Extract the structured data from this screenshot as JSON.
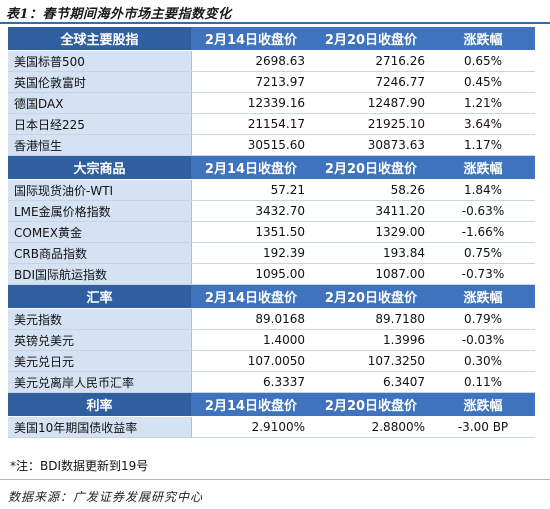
{
  "title": "表1：春节期间海外市场主要指数变化",
  "columns": [
    "2月14日收盘价",
    "2月20日收盘价",
    "涨跌幅"
  ],
  "sections": [
    {
      "name": "全球主要股指",
      "rows": [
        {
          "name": "美国标普500",
          "v1": "2698.63",
          "v2": "2716.26",
          "chg": "0.65%",
          "dir": "up"
        },
        {
          "name": "英国伦敦富时",
          "v1": "7213.97",
          "v2": "7246.77",
          "chg": "0.45%",
          "dir": "up"
        },
        {
          "name": "德国DAX",
          "v1": "12339.16",
          "v2": "12487.90",
          "chg": "1.21%",
          "dir": "up"
        },
        {
          "name": "日本日经225",
          "v1": "21154.17",
          "v2": "21925.10",
          "chg": "3.64%",
          "dir": "up"
        },
        {
          "name": "香港恒生",
          "v1": "30515.60",
          "v2": "30873.63",
          "chg": "1.17%",
          "dir": "up"
        }
      ]
    },
    {
      "name": "大宗商品",
      "rows": [
        {
          "name": "国际现货油价-WTI",
          "v1": "57.21",
          "v2": "58.26",
          "chg": "1.84%",
          "dir": "up"
        },
        {
          "name": "LME金属价格指数",
          "v1": "3432.70",
          "v2": "3411.20",
          "chg": "-0.63%",
          "dir": "down"
        },
        {
          "name": "COMEX黄金",
          "v1": "1351.50",
          "v2": "1329.00",
          "chg": "-1.66%",
          "dir": "down"
        },
        {
          "name": "CRB商品指数",
          "v1": "192.39",
          "v2": "193.84",
          "chg": "0.75%",
          "dir": "up"
        },
        {
          "name": "BDI国际航运指数",
          "v1": "1095.00",
          "v2": "1087.00",
          "chg": "-0.73%",
          "dir": "down"
        }
      ]
    },
    {
      "name": "汇率",
      "rows": [
        {
          "name": "美元指数",
          "v1": "89.0168",
          "v2": "89.7180",
          "chg": "0.79%",
          "dir": "up"
        },
        {
          "name": "英镑兑美元",
          "v1": "1.4000",
          "v2": "1.3996",
          "chg": "-0.03%",
          "dir": "down"
        },
        {
          "name": "美元兑日元",
          "v1": "107.0050",
          "v2": "107.3250",
          "chg": "0.30%",
          "dir": "up"
        },
        {
          "name": "美元兑离岸人民币汇率",
          "v1": "6.3337",
          "v2": "6.3407",
          "chg": "0.11%",
          "dir": "up"
        }
      ]
    },
    {
      "name": "利率",
      "rows": [
        {
          "name": "美国10年期国债收益率",
          "v1": "2.9100%",
          "v2": "2.8800%",
          "chg": "-3.00 BP",
          "dir": "down"
        }
      ]
    }
  ],
  "note": "*注：BDI数据更新到19号",
  "source": "数据来源：广发证券发展研究中心",
  "colors": {
    "header": "#3f73bd",
    "name_cell": "#d4e2f4",
    "up": "#c8102e",
    "down": "#2e8b2e"
  }
}
